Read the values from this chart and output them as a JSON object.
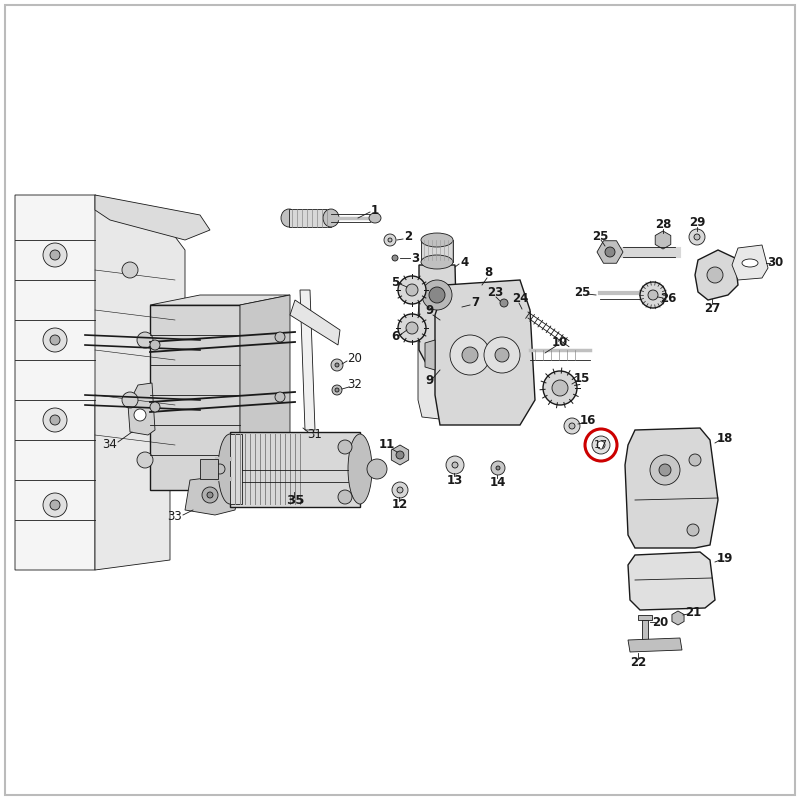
{
  "background_color": "#ffffff",
  "highlight_color": "#cc0000",
  "line_color": "#1a1a1a",
  "fill_light": "#d8d8d8",
  "fill_mid": "#c0c0c0",
  "fill_dark": "#909090",
  "label_color": "#1a1a1a",
  "figsize": [
    8.0,
    8.0
  ],
  "dpi": 100,
  "lw_main": 1.0,
  "lw_thin": 0.6,
  "font_size": 8.5
}
